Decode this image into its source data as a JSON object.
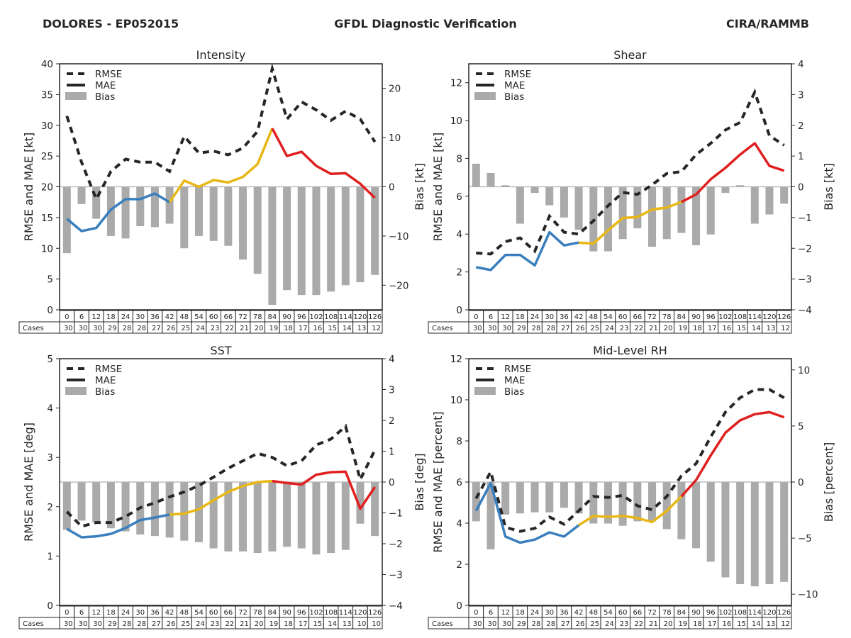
{
  "header": {
    "left": "DOLORES - EP052015",
    "center": "GFDL Diagnostic Verification",
    "right": "CIRA/RAMMB"
  },
  "legend": {
    "rmse": "RMSE",
    "mae": "MAE",
    "bias": "Bias"
  },
  "table_row_label": "Cases",
  "colors": {
    "rmse": "#262626",
    "bias": "#aaaaaa",
    "mae_segments": [
      "#3a7fbd",
      "#e8b714",
      "#e02020"
    ],
    "zero_line": "#b0b0b0"
  },
  "chart_data": [
    {
      "type": "line",
      "title": "Intensity",
      "ylabel": "RMSE and MAE [kt]",
      "y2label": "Bias [kt]",
      "ylim": [
        0,
        40
      ],
      "yticks": [
        0,
        5,
        10,
        15,
        20,
        25,
        30,
        35,
        40
      ],
      "y2lim": [
        -25,
        25
      ],
      "y2ticks": [
        -20,
        -10,
        0,
        10,
        20
      ],
      "y2ticklabels": [
        "−20",
        "−10",
        "0",
        "10",
        "20"
      ],
      "x": [
        0,
        6,
        12,
        18,
        24,
        30,
        36,
        42,
        48,
        54,
        60,
        66,
        72,
        78,
        84,
        90,
        96,
        102,
        108,
        114,
        120,
        126
      ],
      "cases": [
        30,
        30,
        30,
        29,
        28,
        28,
        27,
        26,
        25,
        24,
        23,
        22,
        21,
        20,
        19,
        18,
        17,
        16,
        15,
        14,
        13,
        12
      ],
      "series": [
        {
          "name": "RMSE",
          "axis": "left",
          "values": [
            31.5,
            24,
            18,
            22.5,
            24.5,
            24,
            24,
            22.5,
            28.2,
            25.5,
            25.8,
            25.2,
            26.3,
            29,
            39.2,
            31,
            33.8,
            32.5,
            30.8,
            32.3,
            31,
            27.3
          ]
        },
        {
          "name": "MAE",
          "axis": "left",
          "values": [
            14.8,
            12.8,
            13.3,
            16.3,
            18,
            18,
            18.9,
            17.5,
            21,
            20,
            21.1,
            20.7,
            21.6,
            23.7,
            29.5,
            25,
            25.7,
            23.4,
            22.1,
            22.2,
            20.5,
            18.2
          ]
        },
        {
          "name": "Bias",
          "axis": "right",
          "values": [
            -13.5,
            -3.5,
            -6.5,
            -10,
            -10.5,
            -8,
            -8.2,
            -7.5,
            -12.5,
            -10,
            -11,
            -12,
            -14.8,
            -17.7,
            -24,
            -21,
            -22,
            -22,
            -21.3,
            -20,
            -19.4,
            -17.9
          ]
        }
      ]
    },
    {
      "type": "line",
      "title": "Shear",
      "ylabel": "RMSE and MAE [kt]",
      "y2label": "Bias [kt]",
      "ylim": [
        0,
        13
      ],
      "yticks": [
        0,
        2,
        4,
        6,
        8,
        10,
        12
      ],
      "y2lim": [
        -4,
        4
      ],
      "y2ticks": [
        -4,
        -3,
        -2,
        -1,
        0,
        1,
        2,
        3,
        4
      ],
      "y2ticklabels": [
        "−4",
        "−3",
        "−2",
        "−1",
        "0",
        "1",
        "2",
        "3",
        "4"
      ],
      "x": [
        0,
        6,
        12,
        18,
        24,
        30,
        36,
        42,
        48,
        54,
        60,
        66,
        72,
        78,
        84,
        90,
        96,
        102,
        108,
        114,
        120,
        126
      ],
      "cases": [
        30,
        30,
        30,
        29,
        28,
        28,
        27,
        26,
        25,
        24,
        23,
        22,
        21,
        20,
        19,
        18,
        17,
        16,
        15,
        14,
        13,
        12
      ],
      "series": [
        {
          "name": "RMSE",
          "axis": "left",
          "values": [
            3.0,
            2.95,
            3.6,
            3.8,
            3.1,
            4.95,
            4.1,
            4.0,
            4.7,
            5.5,
            6.2,
            6.1,
            6.6,
            7.2,
            7.3,
            8.2,
            8.8,
            9.5,
            9.9,
            11.5,
            9.2,
            8.7
          ]
        },
        {
          "name": "MAE",
          "axis": "left",
          "values": [
            2.25,
            2.1,
            2.9,
            2.9,
            2.35,
            4.1,
            3.4,
            3.55,
            3.5,
            4.2,
            4.85,
            4.9,
            5.3,
            5.4,
            5.7,
            6.1,
            6.9,
            7.5,
            8.2,
            8.8,
            7.6,
            7.35
          ]
        },
        {
          "name": "Bias",
          "axis": "right",
          "values": [
            0.75,
            0.45,
            0.05,
            -1.2,
            -0.2,
            -0.6,
            -1.0,
            -1.4,
            -2.1,
            -2.1,
            -1.7,
            -1.35,
            -1.95,
            -1.7,
            -1.5,
            -1.9,
            -1.55,
            -0.2,
            0.05,
            -1.2,
            -0.9,
            -0.55
          ]
        }
      ]
    },
    {
      "type": "line",
      "title": "SST",
      "ylabel": "RMSE and MAE [deg]",
      "y2label": "Bias [deg]",
      "ylim": [
        0,
        5
      ],
      "yticks": [
        0,
        1,
        2,
        3,
        4,
        5
      ],
      "y2lim": [
        -4,
        4
      ],
      "y2ticks": [
        -4,
        -3,
        -2,
        -1,
        0,
        1,
        2,
        3,
        4
      ],
      "y2ticklabels": [
        "−4",
        "−3",
        "−2",
        "−1",
        "0",
        "1",
        "2",
        "3",
        "4"
      ],
      "x": [
        0,
        6,
        12,
        18,
        24,
        30,
        36,
        42,
        48,
        54,
        60,
        66,
        72,
        78,
        84,
        90,
        96,
        102,
        108,
        114,
        120,
        126
      ],
      "cases": [
        30,
        30,
        30,
        29,
        28,
        28,
        27,
        26,
        25,
        24,
        23,
        22,
        21,
        20,
        19,
        18,
        17,
        15,
        14,
        13,
        10,
        10
      ],
      "series": [
        {
          "name": "RMSE",
          "axis": "left",
          "values": [
            1.9,
            1.6,
            1.68,
            1.68,
            1.8,
            1.98,
            2.08,
            2.2,
            2.3,
            2.43,
            2.6,
            2.78,
            2.93,
            3.08,
            3.0,
            2.83,
            2.93,
            3.25,
            3.37,
            3.63,
            2.55,
            3.15
          ]
        },
        {
          "name": "MAE",
          "axis": "left",
          "values": [
            1.55,
            1.38,
            1.4,
            1.45,
            1.57,
            1.73,
            1.78,
            1.84,
            1.86,
            1.95,
            2.13,
            2.3,
            2.42,
            2.5,
            2.52,
            2.48,
            2.45,
            2.65,
            2.7,
            2.71,
            1.96,
            2.4
          ]
        },
        {
          "name": "Bias",
          "axis": "right",
          "values": [
            -1.55,
            -1.25,
            -1.3,
            -1.5,
            -1.6,
            -1.7,
            -1.75,
            -1.8,
            -1.9,
            -1.95,
            -2.15,
            -2.25,
            -2.25,
            -2.3,
            -2.25,
            -2.1,
            -2.15,
            -2.35,
            -2.3,
            -2.2,
            -1.35,
            -1.75
          ]
        }
      ]
    },
    {
      "type": "line",
      "title": "Mid-Level RH",
      "ylabel": "RMSE and MAE [percent]",
      "y2label": "Bias [percent]",
      "ylim": [
        0,
        12
      ],
      "yticks": [
        0,
        2,
        4,
        6,
        8,
        10,
        12
      ],
      "y2lim": [
        -11,
        11
      ],
      "y2ticks": [
        -10,
        -5,
        0,
        5,
        10
      ],
      "y2ticklabels": [
        "−10",
        "−5",
        "0",
        "5",
        "10"
      ],
      "x": [
        0,
        6,
        12,
        18,
        24,
        30,
        36,
        42,
        48,
        54,
        60,
        66,
        72,
        78,
        84,
        90,
        96,
        102,
        108,
        114,
        120,
        126
      ],
      "cases": [
        30,
        30,
        30,
        29,
        28,
        28,
        27,
        26,
        25,
        24,
        23,
        22,
        21,
        20,
        19,
        18,
        17,
        16,
        15,
        14,
        13,
        12
      ],
      "series": [
        {
          "name": "RMSE",
          "axis": "left",
          "values": [
            5.2,
            6.5,
            3.8,
            3.6,
            3.75,
            4.3,
            3.95,
            4.6,
            5.3,
            5.25,
            5.35,
            4.85,
            4.65,
            5.3,
            6.3,
            6.9,
            8.2,
            9.4,
            10.1,
            10.5,
            10.5,
            10.1
          ]
        },
        {
          "name": "MAE",
          "axis": "left",
          "values": [
            4.6,
            5.95,
            3.35,
            3.05,
            3.2,
            3.55,
            3.35,
            3.9,
            4.35,
            4.3,
            4.35,
            4.25,
            4.05,
            4.6,
            5.3,
            6.1,
            7.3,
            8.4,
            9.0,
            9.3,
            9.4,
            9.15
          ]
        },
        {
          "name": "Bias",
          "axis": "right",
          "values": [
            -3.5,
            -6.0,
            -2.9,
            -2.8,
            -2.7,
            -2.7,
            -2.3,
            -2.8,
            -3.7,
            -3.7,
            -3.9,
            -3.5,
            -3.5,
            -4.2,
            -5.1,
            -5.9,
            -7.1,
            -8.5,
            -9.1,
            -9.3,
            -9.1,
            -8.9
          ]
        }
      ]
    }
  ]
}
